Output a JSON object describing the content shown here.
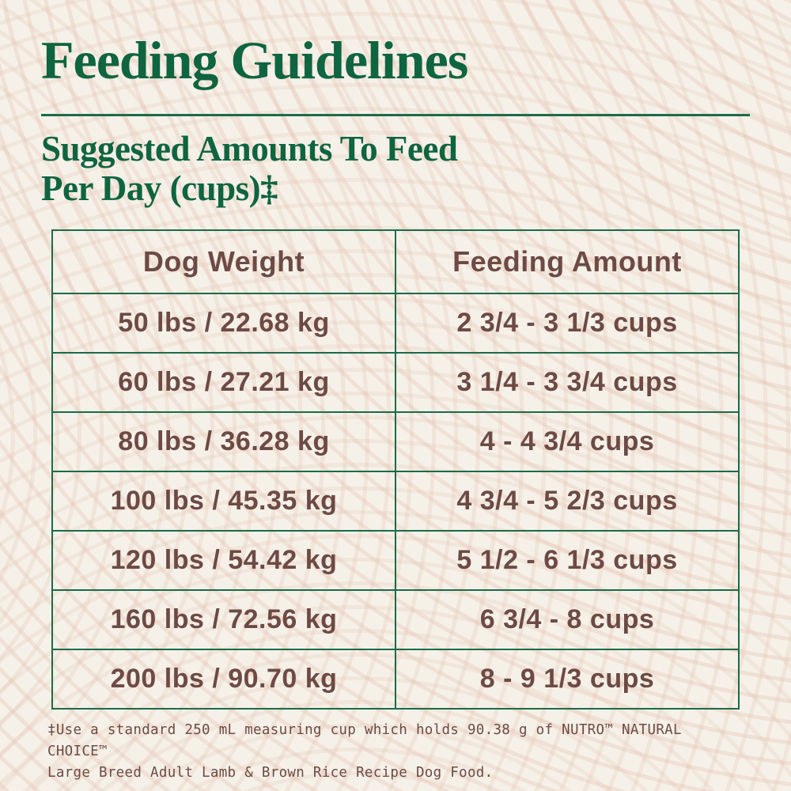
{
  "page": {
    "title": "Feeding Guidelines",
    "subtitle_line1": "Suggested Amounts To Feed",
    "subtitle_line2": "Per Day (cups)‡"
  },
  "table": {
    "columns": [
      "Dog Weight",
      "Feeding Amount"
    ],
    "rows": [
      {
        "weight": "50 lbs / 22.68 kg",
        "amount": "2 3/4 - 3 1/3 cups"
      },
      {
        "weight": "60 lbs / 27.21 kg",
        "amount": "3 1/4 - 3 3/4 cups"
      },
      {
        "weight": "80 lbs / 36.28 kg",
        "amount": "4 - 4 3/4 cups"
      },
      {
        "weight": "100 lbs / 45.35 kg",
        "amount": "4 3/4 - 5 2/3 cups"
      },
      {
        "weight": "120 lbs / 54.42 kg",
        "amount": "5 1/2 - 6 1/3 cups"
      },
      {
        "weight": "160 lbs / 72.56 kg",
        "amount": "6 3/4 - 8 cups"
      },
      {
        "weight": "200 lbs / 90.70 kg",
        "amount": "8 - 9 1/3 cups"
      }
    ]
  },
  "footnote": {
    "line1": "‡Use a standard 250 mL measuring cup which holds 90.38 g of NUTRO™ NATURAL CHOICE™",
    "line2": "Large Breed Adult Lamb & Brown Rice Recipe Dog Food.",
    "full_text": "‡Use a standard 250 mL measuring cup which holds 90.38 g of NUTRO™ NATURAL CHOICE™ Large Breed Adult Lamb & Brown Rice Recipe Dog Food."
  },
  "colors": {
    "heading_green": "#0e6540",
    "border_green": "#1a6b4b",
    "text_brown": "#6d4a45",
    "background_cream": "#f5f1e8",
    "pattern_pink": "#e7c5b6"
  }
}
